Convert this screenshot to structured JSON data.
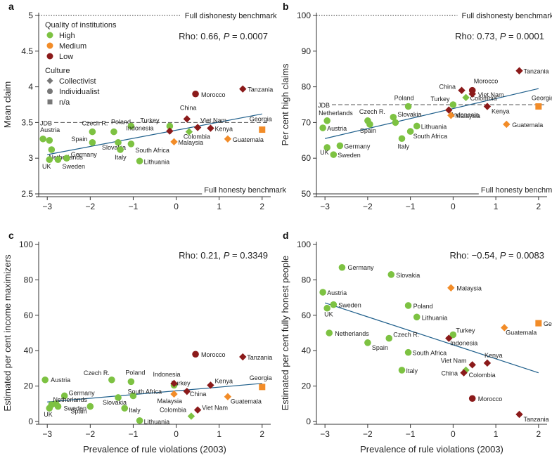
{
  "colors": {
    "High": "#7dc242",
    "Medium": "#f28c28",
    "Low": "#8b1a1a",
    "trend": "#1f5f8b"
  },
  "legend": {
    "quality_title": "Quality of institutions",
    "quality_items": [
      "High",
      "Medium",
      "Low"
    ],
    "culture_title": "Culture",
    "culture_items": [
      {
        "label": "Collectivist",
        "shape": "diamond"
      },
      {
        "label": "Individualist",
        "shape": "circle"
      },
      {
        "label": "n/a",
        "shape": "square"
      }
    ]
  },
  "chart_data": [
    {
      "panel": "a",
      "type": "scatter",
      "ylabel": "Mean claim",
      "xlabel": "",
      "xlim": [
        -3.2,
        2.2
      ],
      "ylim": [
        2.5,
        5
      ],
      "yticks": [
        "2.5",
        "3",
        "3.5",
        "4",
        "4.5",
        "5"
      ],
      "xticks": [
        "−3",
        "−2",
        "−1",
        "0",
        "1",
        "2"
      ],
      "stat_prefix": "Rho: 0.66, ",
      "p_symbol": "P",
      "stat_suffix": " = 0.0007",
      "bench_top": "Full dishonesty benchmark",
      "bench_bottom": "Full honesty benchmark",
      "jdb_label": "JDB",
      "jdb_value": 3.5,
      "trend": [
        [
          -3.0,
          3.05
        ],
        [
          2.0,
          3.62
        ]
      ],
      "points": [
        {
          "label": "Austria",
          "x": -3.1,
          "y": 3.27,
          "q": "High",
          "c": "circle"
        },
        {
          "label": "",
          "x": -2.95,
          "y": 3.25,
          "q": "High",
          "c": "circle"
        },
        {
          "label": "Netherlands",
          "x": -2.9,
          "y": 3.12,
          "q": "High",
          "c": "circle"
        },
        {
          "label": "UK",
          "x": -2.95,
          "y": 2.98,
          "q": "High",
          "c": "circle"
        },
        {
          "label": "Sweden",
          "x": -2.75,
          "y": 2.98,
          "q": "High",
          "c": "circle"
        },
        {
          "label": "Germany",
          "x": -2.55,
          "y": 3.0,
          "q": "High",
          "c": "circle"
        },
        {
          "label": "Czech R.",
          "x": -1.95,
          "y": 3.37,
          "q": "High",
          "c": "circle"
        },
        {
          "label": "Spain",
          "x": -1.95,
          "y": 3.22,
          "q": "High",
          "c": "circle"
        },
        {
          "label": "Slovakia",
          "x": -1.35,
          "y": 3.22,
          "q": "High",
          "c": "circle"
        },
        {
          "label": "Poland",
          "x": -1.45,
          "y": 3.37,
          "q": "High",
          "c": "circle"
        },
        {
          "label": "",
          "x": -1.05,
          "y": 3.45,
          "q": "High",
          "c": "circle"
        },
        {
          "label": "Italy",
          "x": -1.3,
          "y": 3.12,
          "q": "High",
          "c": "circle"
        },
        {
          "label": "South Africa",
          "x": -1.05,
          "y": 3.2,
          "q": "High",
          "c": "circle"
        },
        {
          "label": "Lithuania",
          "x": -0.85,
          "y": 2.96,
          "q": "High",
          "c": "circle"
        },
        {
          "label": "Turkey",
          "x": -0.15,
          "y": 3.45,
          "q": "High",
          "c": "circle"
        },
        {
          "label": "Colombia",
          "x": 0.3,
          "y": 3.37,
          "q": "High",
          "c": "diamond"
        },
        {
          "label": "Indonesia",
          "x": -0.15,
          "y": 3.38,
          "q": "Low",
          "c": "diamond"
        },
        {
          "label": "China",
          "x": 0.25,
          "y": 3.55,
          "q": "Low",
          "c": "diamond"
        },
        {
          "label": "Viet Nam",
          "x": 0.5,
          "y": 3.43,
          "q": "Low",
          "c": "diamond"
        },
        {
          "label": "Kenya",
          "x": 0.8,
          "y": 3.42,
          "q": "Low",
          "c": "diamond"
        },
        {
          "label": "Malaysia",
          "x": -0.05,
          "y": 3.23,
          "q": "Medium",
          "c": "diamond"
        },
        {
          "label": "Guatemala",
          "x": 1.2,
          "y": 3.27,
          "q": "Medium",
          "c": "diamond"
        },
        {
          "label": "Georgia",
          "x": 2.0,
          "y": 3.4,
          "q": "Medium",
          "c": "square"
        },
        {
          "label": "Morocco",
          "x": 0.45,
          "y": 3.9,
          "q": "Low",
          "c": "circle"
        },
        {
          "label": "Tanzania",
          "x": 1.55,
          "y": 3.97,
          "q": "Low",
          "c": "diamond"
        }
      ]
    },
    {
      "panel": "b",
      "type": "scatter",
      "ylabel": "Per cent high claims",
      "xlabel": "",
      "xlim": [
        -3.2,
        2.2
      ],
      "ylim": [
        50,
        100
      ],
      "yticks": [
        "50",
        "60",
        "70",
        "80",
        "90",
        "100"
      ],
      "xticks": [
        "−3",
        "−2",
        "−1",
        "0",
        "1",
        "2"
      ],
      "stat_prefix": "Rho: 0.73, ",
      "p_symbol": "P",
      "stat_suffix": " = 0.0001",
      "bench_top": "Full dishonesty benchmark",
      "bench_bottom": "Full honesty benchmark",
      "jdb_label": "JDB",
      "jdb_value": 75,
      "trend": [
        [
          -3.0,
          65.5
        ],
        [
          2.0,
          79.5
        ]
      ],
      "points": [
        {
          "label": "Netherlands",
          "x": -2.95,
          "y": 70.5,
          "q": "High",
          "c": "circle"
        },
        {
          "label": "Austria",
          "x": -3.05,
          "y": 68.5,
          "q": "High",
          "c": "circle"
        },
        {
          "label": "UK",
          "x": -2.95,
          "y": 63,
          "q": "High",
          "c": "circle"
        },
        {
          "label": "Sweden",
          "x": -2.8,
          "y": 61,
          "q": "High",
          "c": "circle"
        },
        {
          "label": "Germany",
          "x": -2.65,
          "y": 63.5,
          "q": "High",
          "c": "circle"
        },
        {
          "label": "Czech R.",
          "x": -2.0,
          "y": 70.5,
          "q": "High",
          "c": "circle"
        },
        {
          "label": "Spain",
          "x": -1.95,
          "y": 69.5,
          "q": "High",
          "c": "circle"
        },
        {
          "label": "Poland",
          "x": -1.05,
          "y": 74.5,
          "q": "High",
          "c": "circle"
        },
        {
          "label": "Slovakia",
          "x": -1.4,
          "y": 71.5,
          "q": "High",
          "c": "circle"
        },
        {
          "label": "",
          "x": -1.35,
          "y": 70,
          "q": "High",
          "c": "circle"
        },
        {
          "label": "Lithuania",
          "x": -0.85,
          "y": 69,
          "q": "High",
          "c": "circle"
        },
        {
          "label": "South Africa",
          "x": -1.0,
          "y": 67.5,
          "q": "High",
          "c": "circle"
        },
        {
          "label": "Italy",
          "x": -1.2,
          "y": 65.5,
          "q": "High",
          "c": "circle"
        },
        {
          "label": "Turkey",
          "x": 0.0,
          "y": 75,
          "q": "High",
          "c": "circle"
        },
        {
          "label": "Colombia",
          "x": 0.3,
          "y": 77,
          "q": "High",
          "c": "diamond"
        },
        {
          "label": "Indonesia",
          "x": -0.1,
          "y": 73.5,
          "q": "Low",
          "c": "diamond"
        },
        {
          "label": "China",
          "x": 0.2,
          "y": 79,
          "q": "Low",
          "c": "diamond"
        },
        {
          "label": "Morocco",
          "x": 0.45,
          "y": 79,
          "q": "Low",
          "c": "circle"
        },
        {
          "label": "Viet Nam",
          "x": 0.45,
          "y": 78,
          "q": "Low",
          "c": "diamond"
        },
        {
          "label": "Kenya",
          "x": 0.8,
          "y": 74.5,
          "q": "Low",
          "c": "diamond"
        },
        {
          "label": "Malaysia",
          "x": -0.05,
          "y": 72,
          "q": "Medium",
          "c": "diamond"
        },
        {
          "label": "Guatemala",
          "x": 1.25,
          "y": 69.5,
          "q": "Medium",
          "c": "diamond"
        },
        {
          "label": "Georgia",
          "x": 2.0,
          "y": 74.5,
          "q": "Medium",
          "c": "square"
        },
        {
          "label": "Tanzania",
          "x": 1.55,
          "y": 84.5,
          "q": "Low",
          "c": "diamond"
        }
      ]
    },
    {
      "panel": "c",
      "type": "scatter",
      "ylabel": "Estimated per cent income maximizers",
      "xlabel": "Prevalence of rule violations (2003)",
      "xlim": [
        -3.2,
        2.2
      ],
      "ylim": [
        0,
        100
      ],
      "yticks": [
        "0",
        "20",
        "40",
        "60",
        "80",
        "100"
      ],
      "xticks": [
        "−3",
        "−2",
        "−1",
        "0",
        "1",
        "2"
      ],
      "stat_prefix": "Rho: 0.21, ",
      "p_symbol": "P",
      "stat_suffix": " = 0.3349",
      "trend": [
        [
          -3.0,
          11
        ],
        [
          2.0,
          21.5
        ]
      ],
      "points": [
        {
          "label": "Austria",
          "x": -3.05,
          "y": 23.5,
          "q": "High",
          "c": "circle"
        },
        {
          "label": "Germany",
          "x": -2.6,
          "y": 14.5,
          "q": "High",
          "c": "circle"
        },
        {
          "label": "Netherlands",
          "x": -2.8,
          "y": 10,
          "q": "High",
          "c": "circle"
        },
        {
          "label": "UK",
          "x": -2.95,
          "y": 7.5,
          "q": "High",
          "c": "circle"
        },
        {
          "label": "",
          "x": -2.9,
          "y": 9.5,
          "q": "High",
          "c": "circle"
        },
        {
          "label": "Sweden",
          "x": -2.75,
          "y": 8.5,
          "q": "High",
          "c": "circle"
        },
        {
          "label": "Czech R.",
          "x": -1.5,
          "y": 23.5,
          "q": "High",
          "c": "circle"
        },
        {
          "label": "Spain",
          "x": -2.0,
          "y": 8.5,
          "q": "High",
          "c": "circle"
        },
        {
          "label": "Slovakia",
          "x": -1.35,
          "y": 13.5,
          "q": "High",
          "c": "circle"
        },
        {
          "label": "Poland",
          "x": -1.05,
          "y": 22.5,
          "q": "High",
          "c": "circle"
        },
        {
          "label": "South Africa",
          "x": -1.0,
          "y": 14.5,
          "q": "High",
          "c": "circle"
        },
        {
          "label": "Italy",
          "x": -1.2,
          "y": 7.5,
          "q": "High",
          "c": "circle"
        },
        {
          "label": "Lithuania",
          "x": -0.85,
          "y": 0.5,
          "q": "High",
          "c": "circle"
        },
        {
          "label": "Turkey",
          "x": -0.05,
          "y": 20.5,
          "q": "High",
          "c": "circle"
        },
        {
          "label": "Colombia",
          "x": 0.35,
          "y": 3,
          "q": "High",
          "c": "diamond"
        },
        {
          "label": "Indonesia",
          "x": -0.05,
          "y": 21.5,
          "q": "Low",
          "c": "diamond"
        },
        {
          "label": "China",
          "x": 0.25,
          "y": 17,
          "q": "Low",
          "c": "diamond"
        },
        {
          "label": "Viet Nam",
          "x": 0.5,
          "y": 6.5,
          "q": "Low",
          "c": "diamond"
        },
        {
          "label": "Kenya",
          "x": 0.8,
          "y": 20.5,
          "q": "Low",
          "c": "diamond"
        },
        {
          "label": "Malaysia",
          "x": -0.05,
          "y": 15.5,
          "q": "Medium",
          "c": "diamond"
        },
        {
          "label": "Guatemala",
          "x": 1.2,
          "y": 14,
          "q": "Medium",
          "c": "diamond"
        },
        {
          "label": "Georgia",
          "x": 2.0,
          "y": 19.5,
          "q": "Medium",
          "c": "square"
        },
        {
          "label": "Morocco",
          "x": 0.45,
          "y": 38,
          "q": "Low",
          "c": "circle"
        },
        {
          "label": "Tanzania",
          "x": 1.55,
          "y": 36.5,
          "q": "Low",
          "c": "diamond"
        }
      ]
    },
    {
      "panel": "d",
      "type": "scatter",
      "ylabel": "Estimated per cent fully honest people",
      "xlabel": "Prevalence of rule violations (2003)",
      "xlim": [
        -3.2,
        2.2
      ],
      "ylim": [
        0,
        100
      ],
      "yticks": [
        "0",
        "20",
        "40",
        "60",
        "80",
        "100"
      ],
      "xticks": [
        "−3",
        "−2",
        "−1",
        "0",
        "1",
        "2"
      ],
      "stat_prefix": "Rho: −0.54, ",
      "p_symbol": "P",
      "stat_suffix": " = 0.0083",
      "trend": [
        [
          -3.0,
          67
        ],
        [
          2.0,
          27.5
        ]
      ],
      "points": [
        {
          "label": "Germany",
          "x": -2.6,
          "y": 87,
          "q": "High",
          "c": "circle"
        },
        {
          "label": "Slovakia",
          "x": -1.45,
          "y": 83,
          "q": "High",
          "c": "circle"
        },
        {
          "label": "Austria",
          "x": -3.05,
          "y": 73,
          "q": "High",
          "c": "circle"
        },
        {
          "label": "UK",
          "x": -2.95,
          "y": 64,
          "q": "High",
          "c": "circle"
        },
        {
          "label": "Sweden",
          "x": -2.8,
          "y": 66,
          "q": "High",
          "c": "circle"
        },
        {
          "label": "Netherlands",
          "x": -2.9,
          "y": 50,
          "q": "High",
          "c": "circle"
        },
        {
          "label": "Poland",
          "x": -1.05,
          "y": 65.5,
          "q": "High",
          "c": "circle"
        },
        {
          "label": "Lithuania",
          "x": -0.85,
          "y": 59,
          "q": "High",
          "c": "circle"
        },
        {
          "label": "Czech R.",
          "x": -1.5,
          "y": 47,
          "q": "High",
          "c": "circle"
        },
        {
          "label": "Spain",
          "x": -2.0,
          "y": 44.5,
          "q": "High",
          "c": "circle"
        },
        {
          "label": "South Africa",
          "x": -1.05,
          "y": 39,
          "q": "High",
          "c": "circle"
        },
        {
          "label": "Italy",
          "x": -1.2,
          "y": 29,
          "q": "High",
          "c": "circle"
        },
        {
          "label": "Turkey",
          "x": 0.0,
          "y": 49,
          "q": "High",
          "c": "circle"
        },
        {
          "label": "Colombia",
          "x": 0.3,
          "y": 29,
          "q": "High",
          "c": "diamond"
        },
        {
          "label": "Indonesia",
          "x": -0.1,
          "y": 47,
          "q": "Low",
          "c": "diamond"
        },
        {
          "label": "Viet Nam",
          "x": 0.45,
          "y": 32,
          "q": "Low",
          "c": "diamond"
        },
        {
          "label": "China",
          "x": 0.25,
          "y": 27.5,
          "q": "Low",
          "c": "diamond"
        },
        {
          "label": "Kenya",
          "x": 0.8,
          "y": 33,
          "q": "Low",
          "c": "diamond"
        },
        {
          "label": "Malaysia",
          "x": -0.05,
          "y": 75.5,
          "q": "Medium",
          "c": "diamond"
        },
        {
          "label": "Guatemala",
          "x": 1.2,
          "y": 53,
          "q": "Medium",
          "c": "diamond"
        },
        {
          "label": "Georgia",
          "x": 2.0,
          "y": 55.5,
          "q": "Medium",
          "c": "square"
        },
        {
          "label": "Morocco",
          "x": 0.45,
          "y": 13,
          "q": "Low",
          "c": "circle"
        },
        {
          "label": "Tanzania",
          "x": 1.55,
          "y": 4,
          "q": "Low",
          "c": "diamond"
        }
      ]
    }
  ]
}
